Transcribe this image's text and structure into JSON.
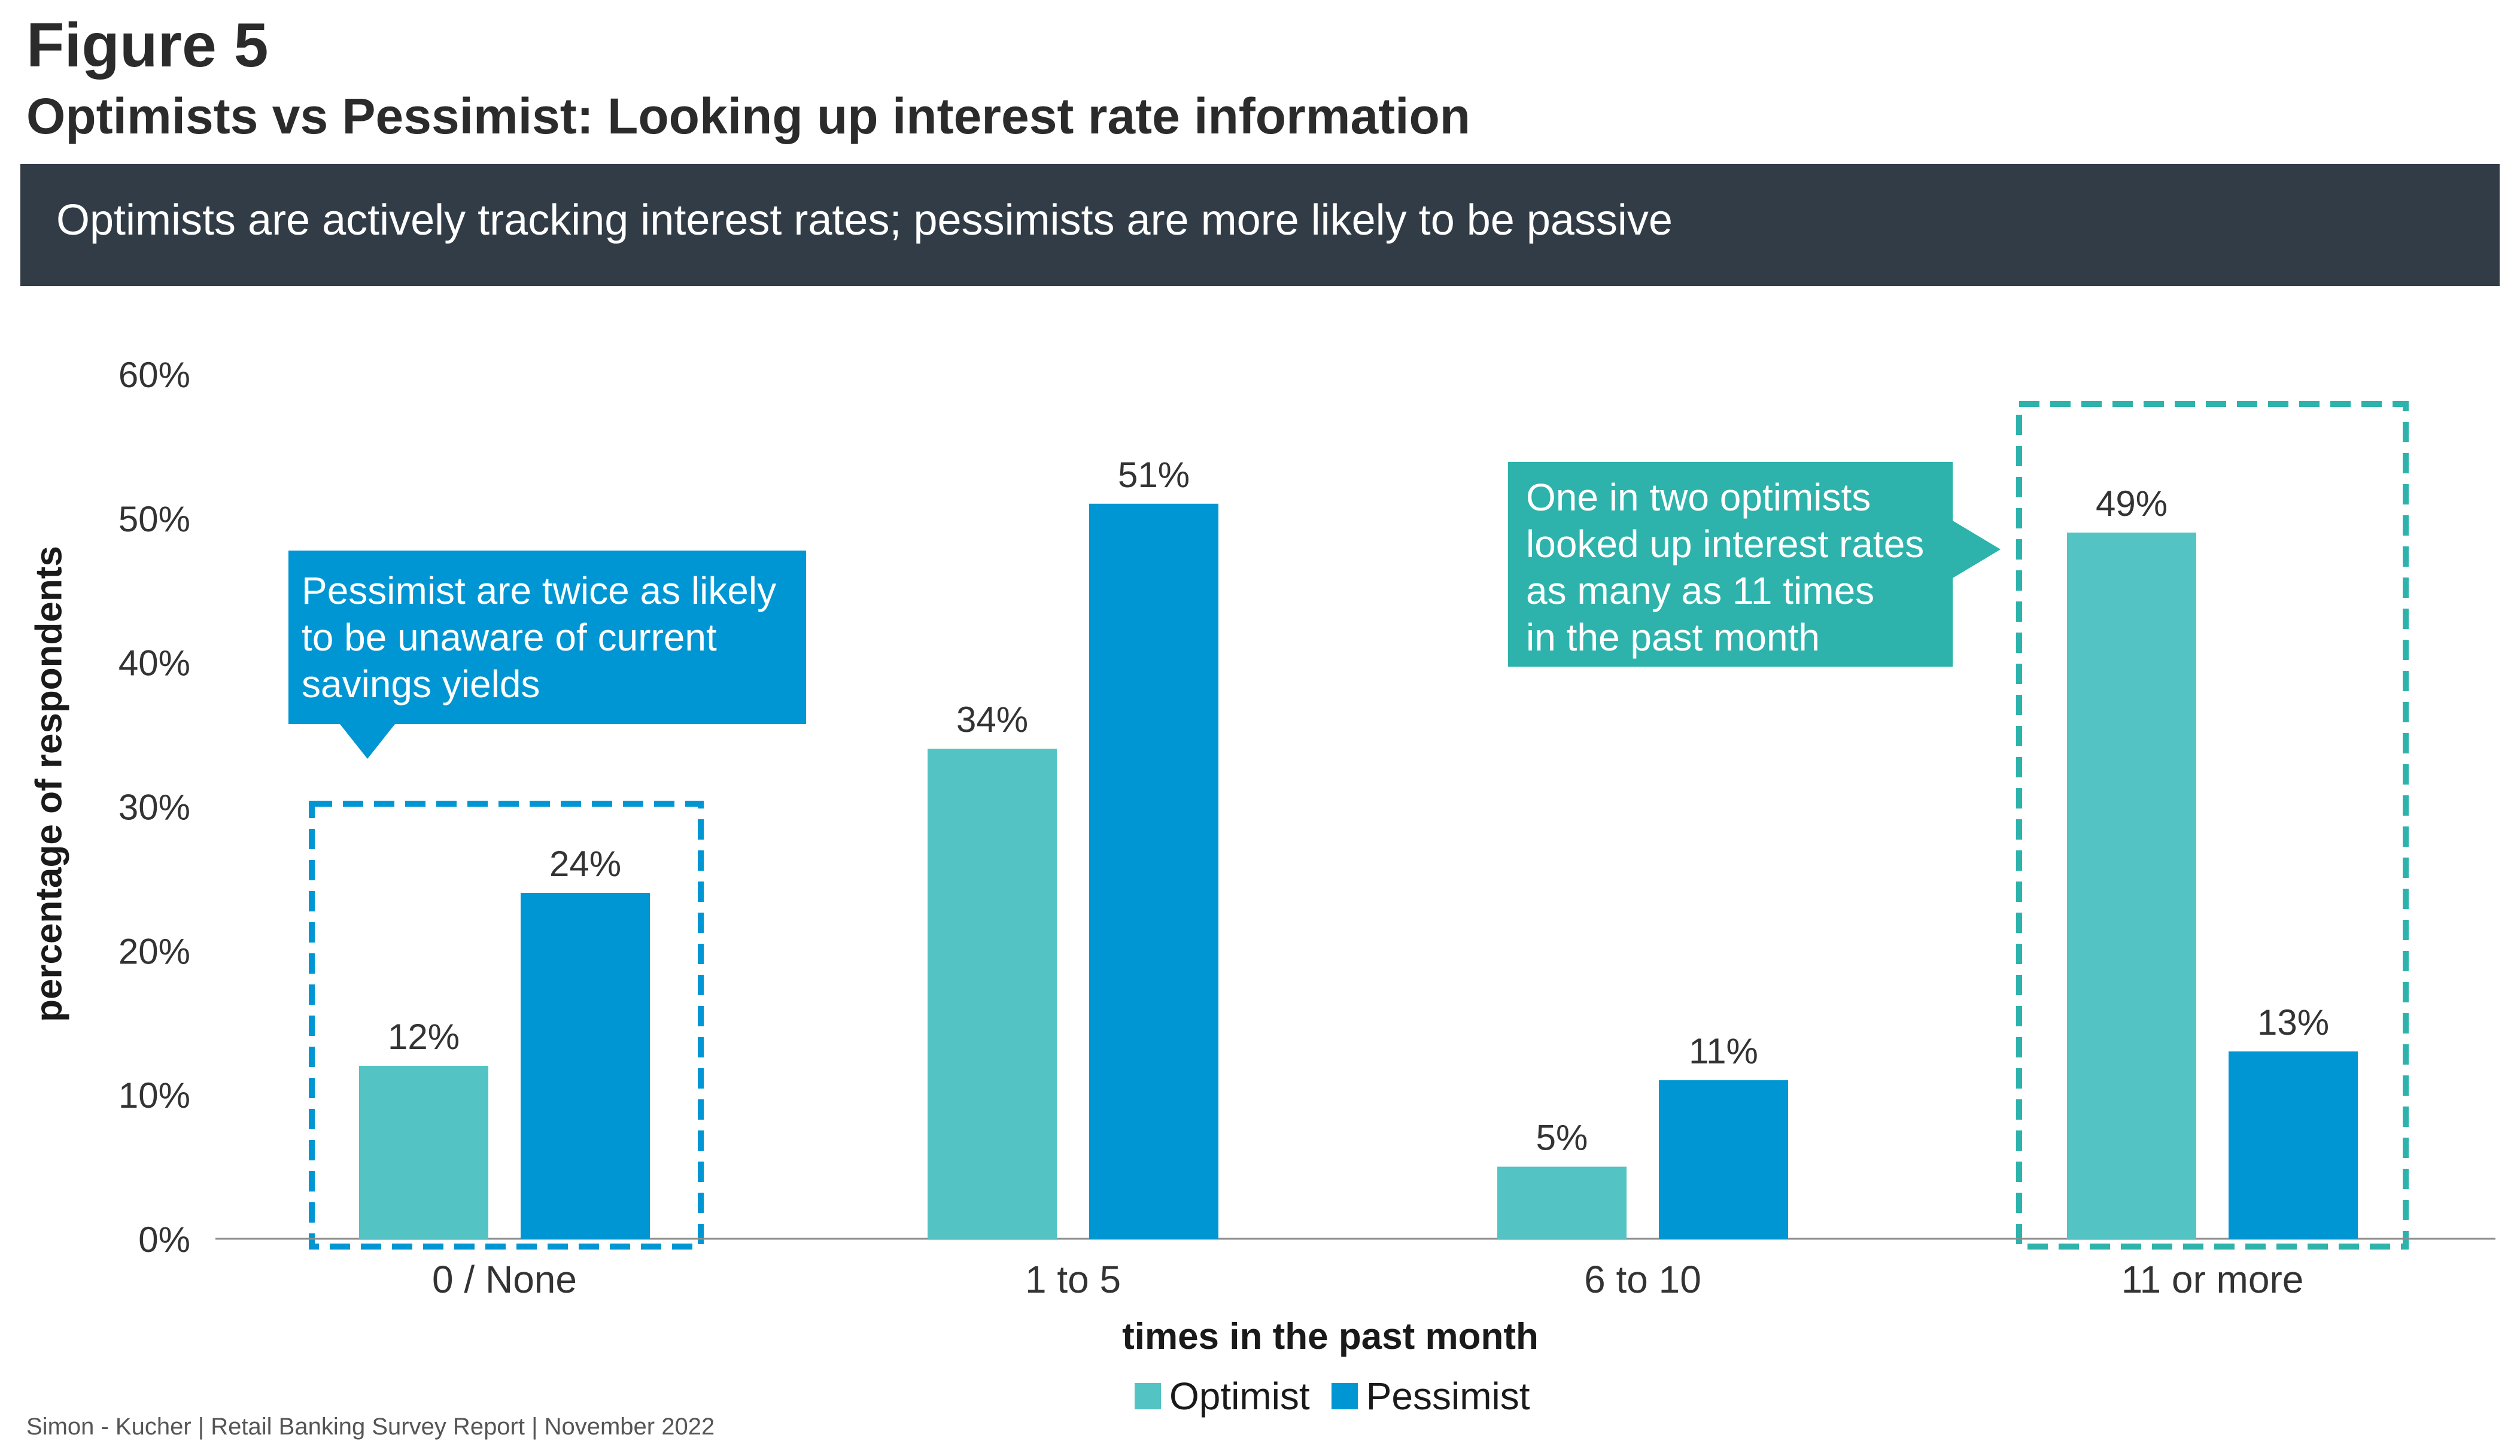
{
  "figure_label": "Figure 5",
  "title": "Optimists vs Pessimist: Looking up interest rate information",
  "banner": "Optimists are actively tracking interest rates; pessimists are more likely to be passive",
  "chart_data": {
    "type": "bar",
    "categories": [
      "0 / None",
      "1 to 5",
      "6 to 10",
      "11 or more"
    ],
    "series": [
      {
        "name": "Optimist",
        "values": [
          12,
          34,
          5,
          49
        ],
        "labels": [
          "12%",
          "34%",
          "5%",
          "49%"
        ],
        "color": "#53c3c4"
      },
      {
        "name": "Pessimist",
        "values": [
          24,
          51,
          11,
          13
        ],
        "labels": [
          "24%",
          "51%",
          "11%",
          "13%"
        ],
        "color": "#0096d3"
      }
    ],
    "ylim": [
      0,
      60
    ],
    "yticks": [
      "0%",
      "10%",
      "20%",
      "30%",
      "40%",
      "50%",
      "60%"
    ],
    "xlabel": "times in the past month",
    "ylabel": "percentage of respondents",
    "legend_position": "bottom-center",
    "grid": false,
    "highlight_colors": {
      "left": "#0096d3",
      "right": "#2db3ac"
    }
  },
  "callouts": {
    "left": {
      "lines": [
        "Pessimist are twice as likely",
        "to be unaware of current",
        "savings yields"
      ],
      "color": "#0096d3"
    },
    "right": {
      "lines": [
        "One in two optimists",
        "looked up interest rates",
        "as many as 11 times",
        "in the past month"
      ],
      "color": "#2db3ac"
    }
  },
  "footer": "Simon - Kucher  |  Retail Banking Survey Report  |  November 2022"
}
